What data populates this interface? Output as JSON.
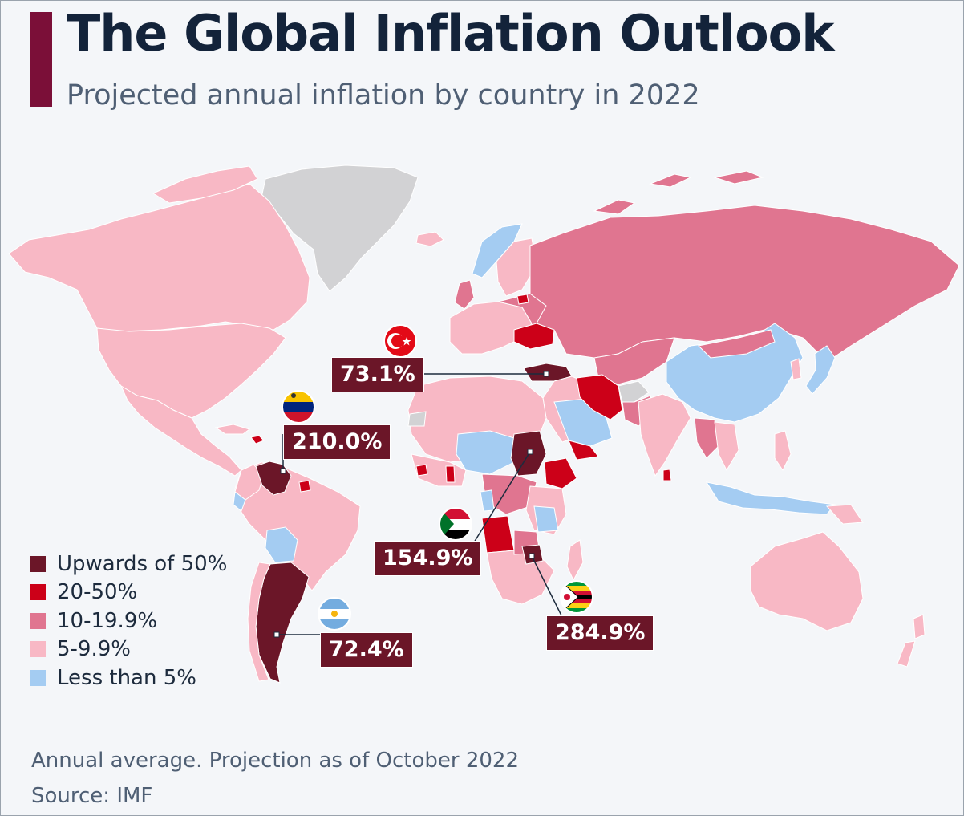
{
  "header": {
    "title": "The Global Inflation Outlook",
    "subtitle": "Projected annual inflation by country in 2022"
  },
  "legend": {
    "items": [
      {
        "label": "Upwards of 50%",
        "color": "#6b1628"
      },
      {
        "label": "20-50%",
        "color": "#cc0018"
      },
      {
        "label": "10-19.9%",
        "color": "#e07590"
      },
      {
        "label": "5-9.9%",
        "color": "#f8b8c5"
      },
      {
        "label": "Less than 5%",
        "color": "#a4ccf2"
      }
    ]
  },
  "no_data_color": "#d2d2d4",
  "callouts": {
    "turkey": {
      "value": "73.1%",
      "flag": "turkey-flag-icon"
    },
    "venezuela": {
      "value": "210.0%",
      "flag": "venezuela-flag-icon"
    },
    "sudan": {
      "value": "154.9%",
      "flag": "sudan-flag-icon"
    },
    "zimbabwe": {
      "value": "284.9%",
      "flag": "zimbabwe-flag-icon"
    },
    "argentina": {
      "value": "72.4%",
      "flag": "argentina-flag-icon"
    }
  },
  "footer": {
    "note": "Annual average. Projection as of October 2022",
    "source": "Source: IMF"
  }
}
